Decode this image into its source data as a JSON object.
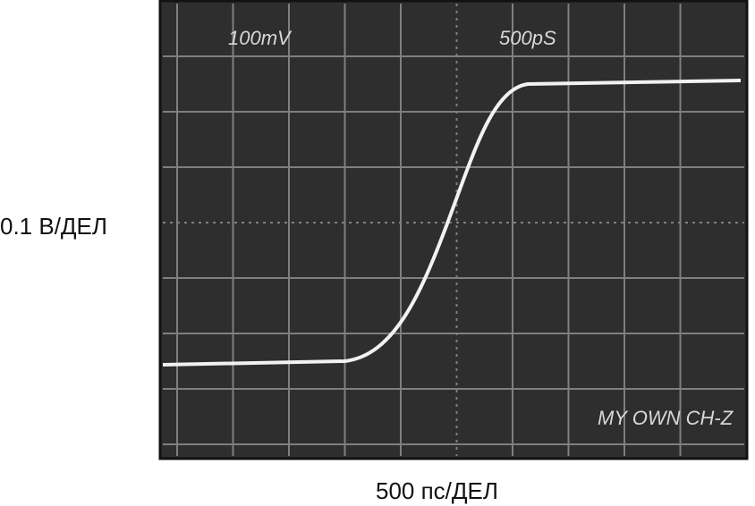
{
  "vertical_scale": "0.1 В/ДЕЛ",
  "horizontal_scale": "500 пс/ДЕЛ",
  "screen": {
    "volts_readout": "100mV",
    "time_readout": "500pS",
    "caption": "MY OWN CH-Z"
  }
}
